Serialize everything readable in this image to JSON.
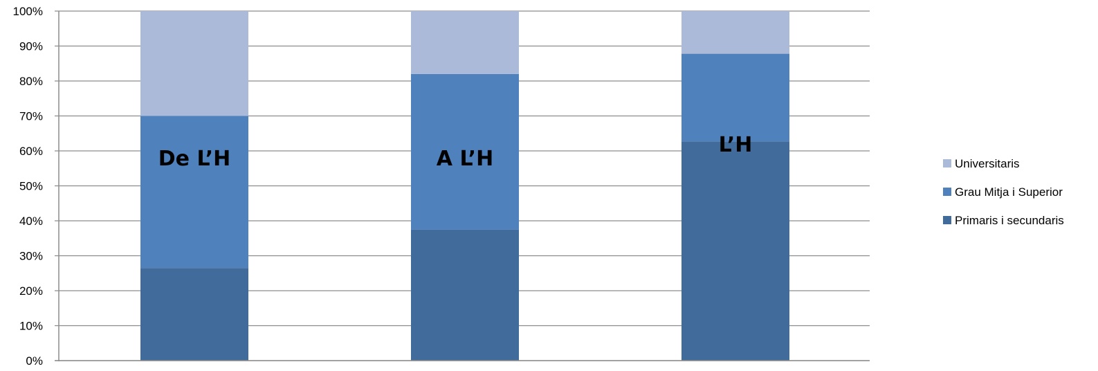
{
  "chart_data": {
    "type": "bar",
    "stacked": true,
    "categories": [
      "",
      "",
      ""
    ],
    "bar_labels": [
      "De L’H",
      "A L’H",
      "L’H"
    ],
    "series": [
      {
        "name": "Primaris i secundaris",
        "color": "#416b9b",
        "values": [
          26.5,
          37.5,
          62.7
        ]
      },
      {
        "name": "Grau Mitja i Superior",
        "color": "#4f81bd",
        "values": [
          43.5,
          44.5,
          25.1
        ]
      },
      {
        "name": "Universitaris",
        "color": "#abbad8",
        "values": [
          30.0,
          18.0,
          12.2
        ]
      }
    ],
    "ylim": [
      0,
      100
    ],
    "yticks": [
      "0%",
      "10%",
      "20%",
      "30%",
      "40%",
      "50%",
      "60%",
      "70%",
      "80%",
      "90%",
      "100%"
    ],
    "grid": true,
    "legend_position": "right",
    "legend_order": [
      "Universitaris",
      "Grau Mitja i Superior",
      "Primaris i secundaris"
    ],
    "gridline_color": "#8c8c8c"
  }
}
